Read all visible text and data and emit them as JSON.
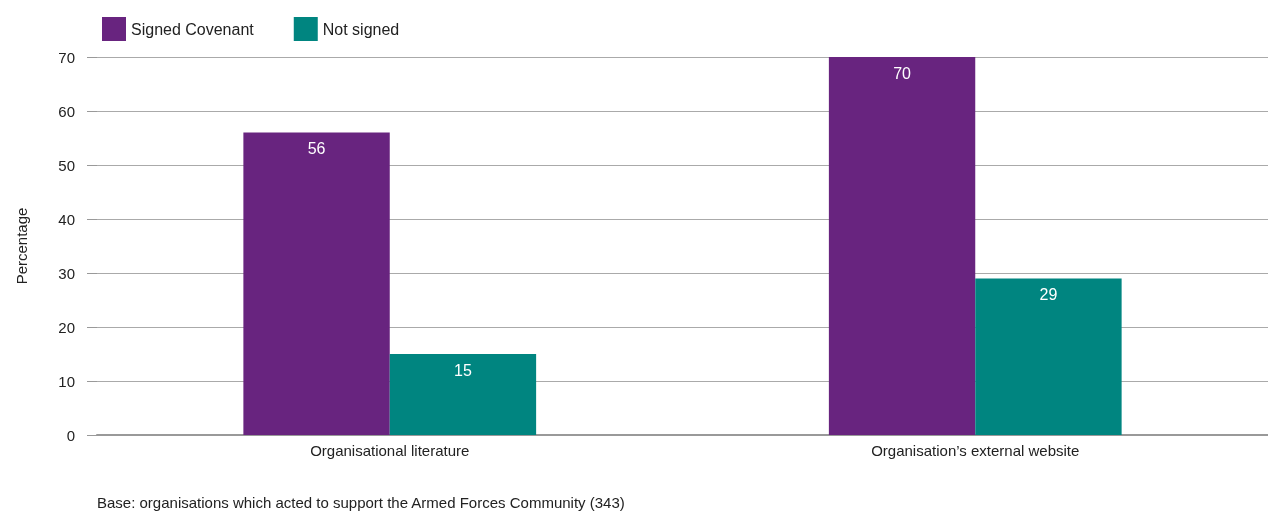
{
  "chart_data": {
    "type": "bar",
    "ylabel": "Percentage",
    "categories": [
      "Organisational literature",
      "Organisation’s external website"
    ],
    "series": [
      {
        "name": "Signed Covenant",
        "color": "#68247f",
        "values": [
          56,
          70
        ]
      },
      {
        "name": "Not signed",
        "color": "#008580",
        "values": [
          15,
          29
        ]
      }
    ],
    "ylim": [
      0,
      70
    ],
    "yticks": [
      0,
      10,
      20,
      30,
      40,
      50,
      60,
      70
    ],
    "grid": "y",
    "legend": "top left",
    "data_labels": true,
    "annotations": [
      "Base: organisations which acted to support the Armed Forces Community (343)"
    ]
  }
}
